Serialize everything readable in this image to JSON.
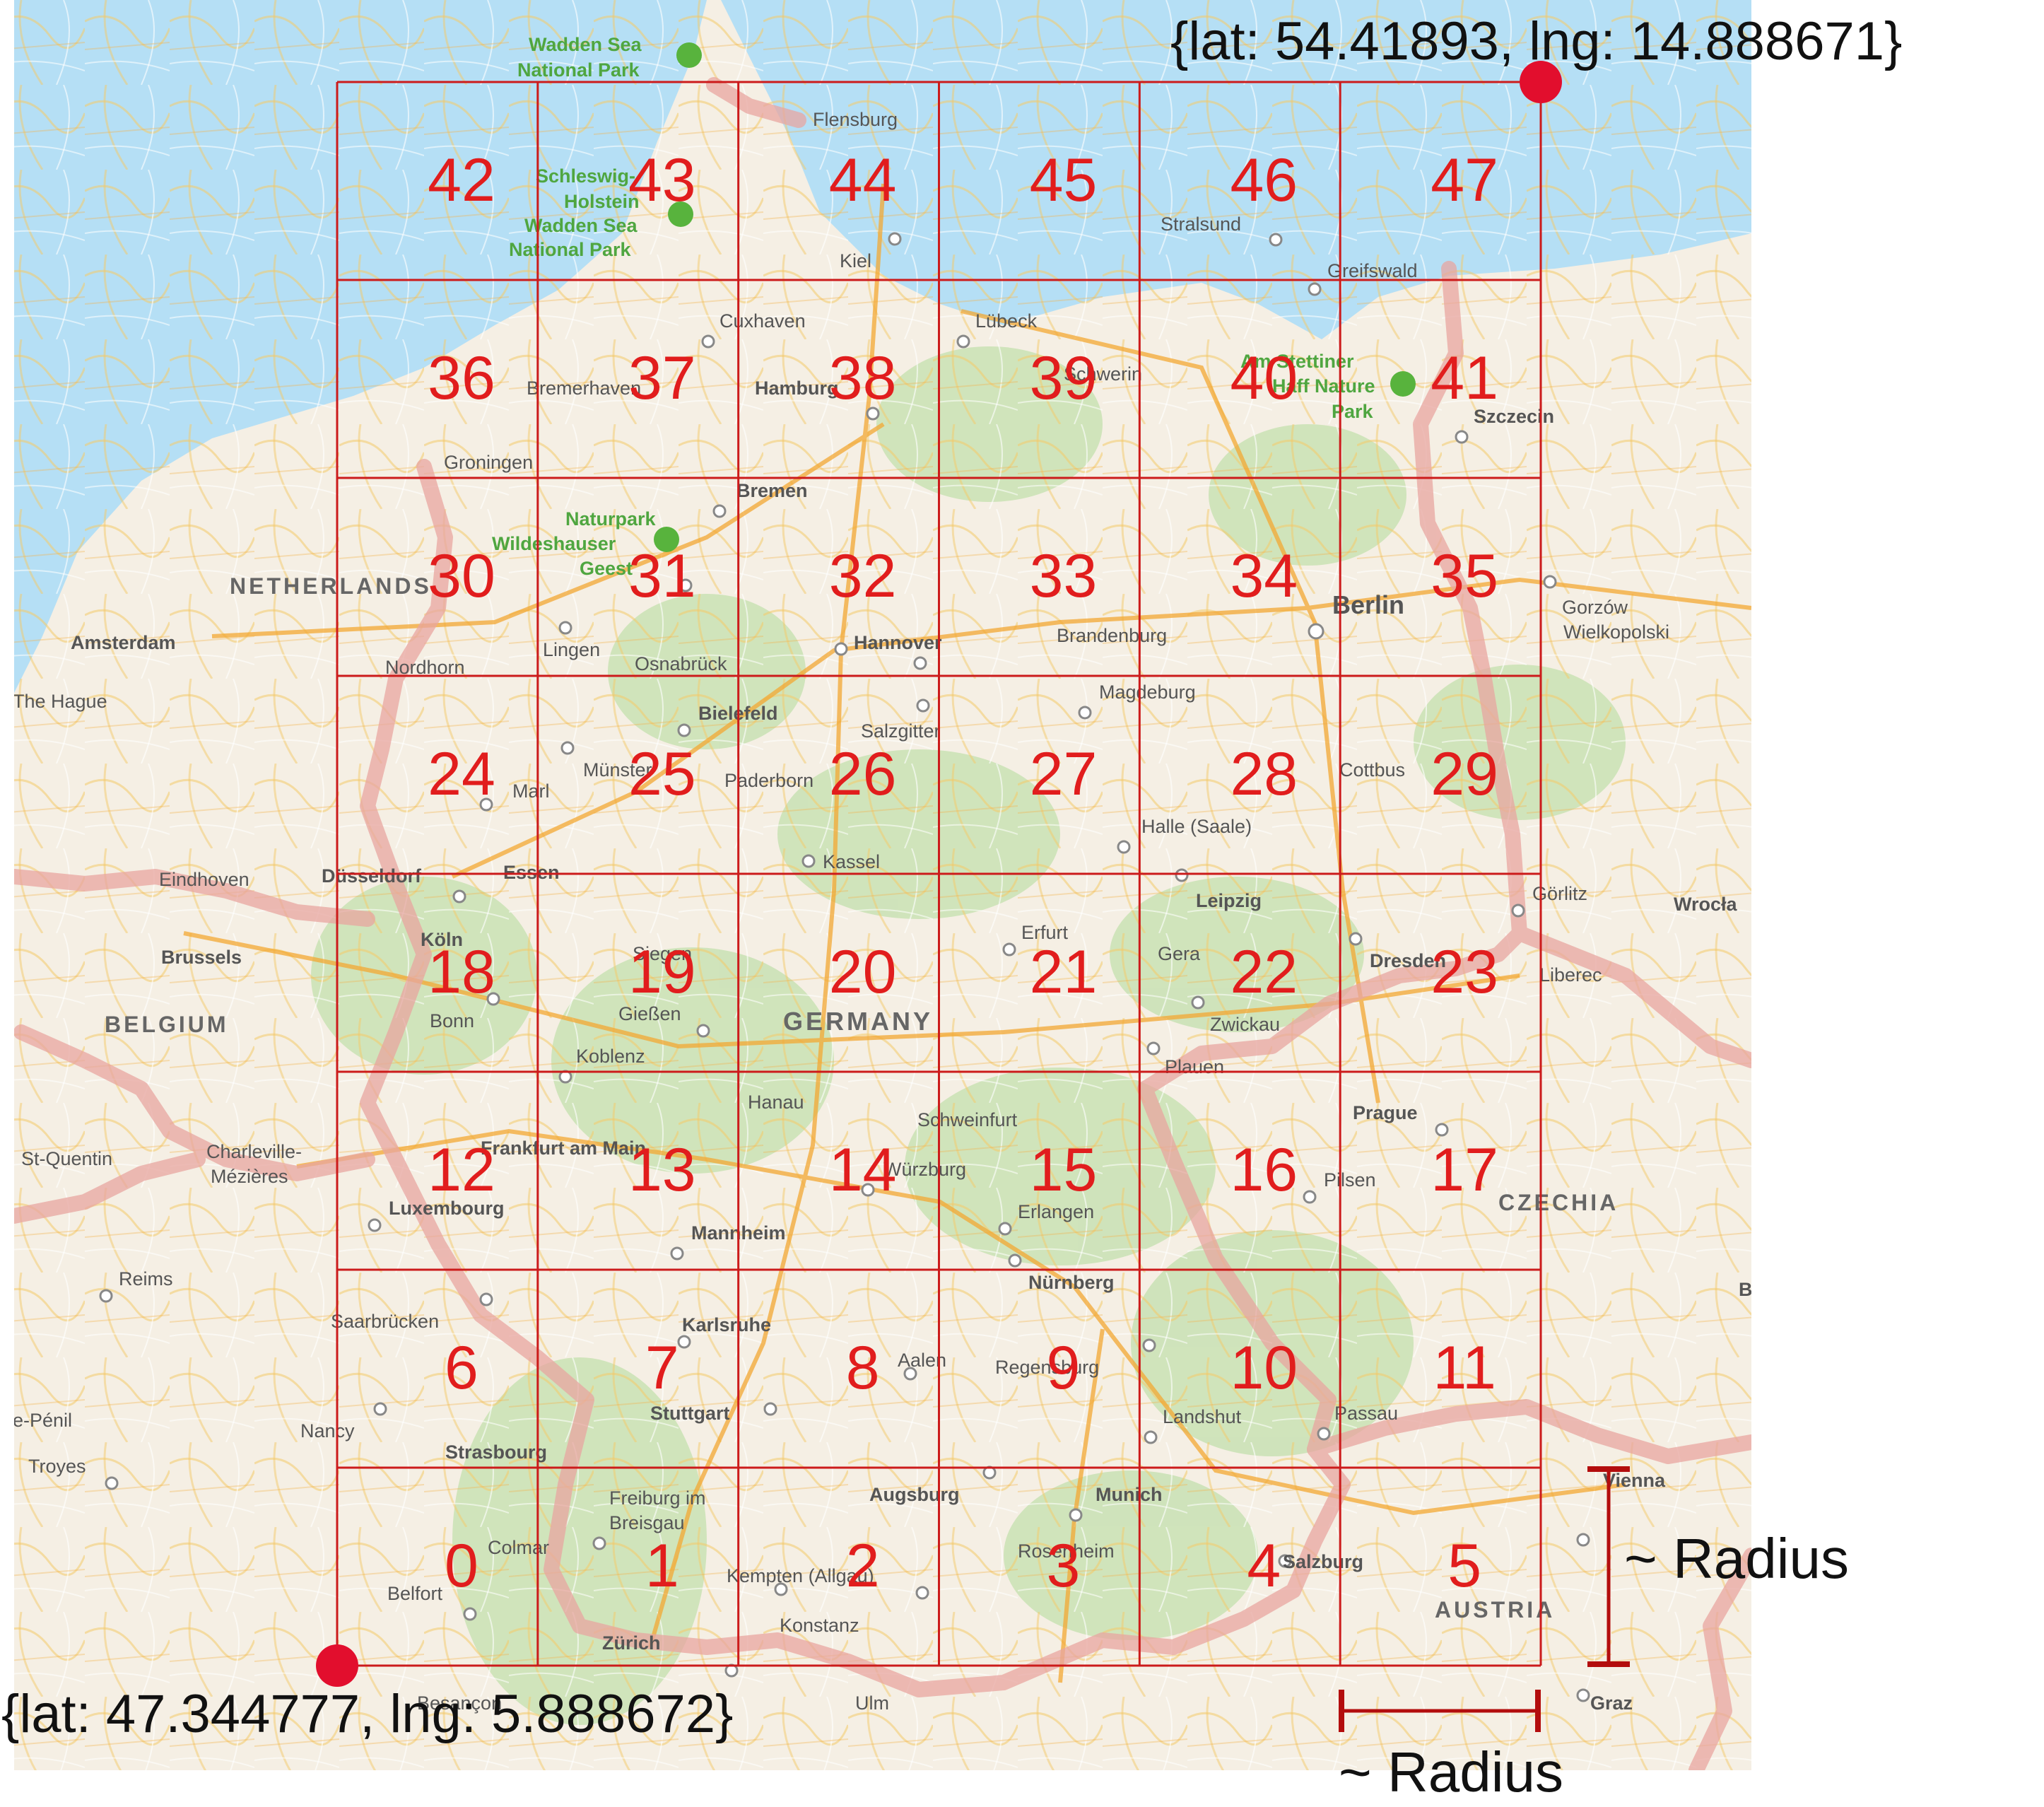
{
  "corners": {
    "north_east": "{lat: 54.41893, lng: 14.888671}",
    "south_west": "{lat: 47.344777, lng: 5.888672}"
  },
  "radius": {
    "vertical_label": "~ Radius",
    "horizontal_label": "~ Radius"
  },
  "grid": {
    "columns": 6,
    "rows": 8,
    "cells": [
      "0",
      "1",
      "2",
      "3",
      "4",
      "5",
      "6",
      "7",
      "8",
      "9",
      "10",
      "11",
      "12",
      "13",
      "14",
      "15",
      "16",
      "17",
      "18",
      "19",
      "20",
      "21",
      "22",
      "23",
      "24",
      "25",
      "26",
      "27",
      "28",
      "29",
      "30",
      "31",
      "32",
      "33",
      "34",
      "35",
      "36",
      "37",
      "38",
      "39",
      "40",
      "41",
      "42",
      "43",
      "44",
      "45",
      "46",
      "47"
    ]
  },
  "countries": [
    "NETHERLANDS",
    "BELGIUM",
    "GERMANY",
    "CZECHIA",
    "AUSTRIA"
  ],
  "parks": [
    {
      "name1": "Wadden Sea",
      "name2": "National Park"
    },
    {
      "name1": "Schleswig-",
      "name2": "Holstein"
    },
    {
      "name1": "Wadden Sea",
      "name2": "National Park"
    },
    {
      "name1": "Naturpark",
      "name2": "Wildeshauser"
    },
    {
      "name1": "Am Stettiner",
      "name2": "Haff Nature"
    }
  ],
  "cities": [
    "Flensburg",
    "Kiel",
    "Stralsund",
    "Greifswald",
    "Cuxhaven",
    "Lübeck",
    "Schwerin",
    "Bremerhaven",
    "Hamburg",
    "Szczecin",
    "Groningen",
    "Bremen",
    "Geest",
    "Park",
    "Amsterdam",
    "Lingen",
    "Osnabrück",
    "Hannover",
    "Brandenburg",
    "Berlin",
    "Gorzów",
    "Wielkopolski",
    "Nordhorn",
    "The Hague",
    "Bielefeld",
    "Salzgitter",
    "Magdeburg",
    "Münster",
    "Paderborn",
    "Marl",
    "Cottbus",
    "Halle (Saale)",
    "Eindhoven",
    "Düsseldorf",
    "Essen",
    "Kassel",
    "Leipzig",
    "Görlitz",
    "Wrocła",
    "Köln",
    "Siegen",
    "Erfurt",
    "Gera",
    "Dresden",
    "Brussels",
    "Bonn",
    "Gießen",
    "Liberec",
    "Zwickau",
    "Koblenz",
    "Plauen",
    "Hanau",
    "Schweinfurt",
    "Prague",
    "St-Quentin",
    "Charleville-",
    "Mézières",
    "Frankfurt am Main",
    "Würzburg",
    "Pilsen",
    "Luxembourg",
    "Erlangen",
    "Mannheim",
    "Reims",
    "Nürnberg",
    "Saarbrücken",
    "Karlsruhe",
    "Aalen",
    "Regensburg",
    "Stuttgart",
    "Landshut",
    "Passau",
    "e-Pénil",
    "Nancy",
    "Strasbourg",
    "Troyes",
    "Augsburg",
    "Munich",
    "Vienna",
    "Freiburg im",
    "Breisgau",
    "Colmar",
    "Rosenheim",
    "Salzburg",
    "Kempten (Allgau)",
    "Belfort",
    "Zürich",
    "Konstanz",
    "Graz",
    "Besançon",
    "Ulm",
    "B"
  ]
}
